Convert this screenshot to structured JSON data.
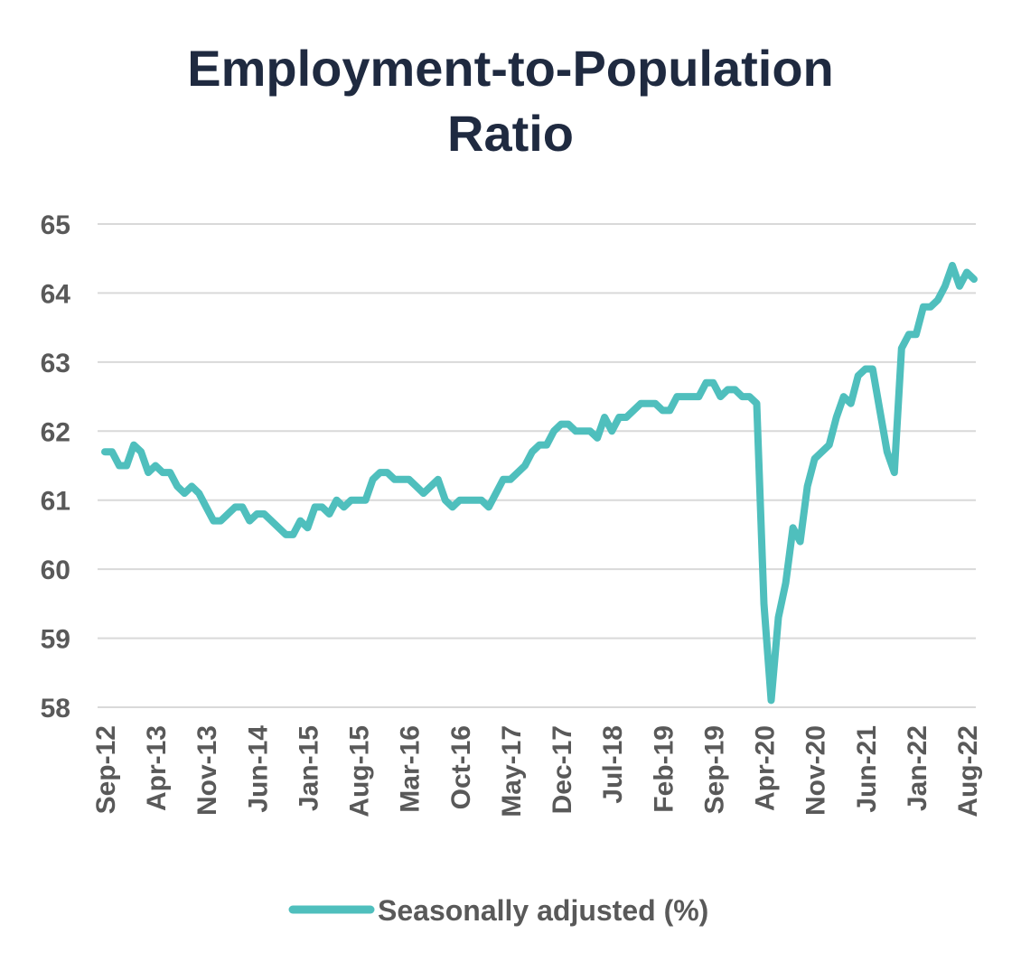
{
  "chart_data": {
    "type": "line",
    "title_line1": "Employment-to-Population",
    "title_line2": "Ratio",
    "xlabel": "",
    "ylabel": "",
    "ylim": [
      58,
      65
    ],
    "yticks": [
      58,
      59,
      60,
      61,
      62,
      63,
      64,
      65
    ],
    "grid": true,
    "legend_position": "bottom",
    "x_tick_labels": [
      "Sep-12",
      "Apr-13",
      "Nov-13",
      "Jun-14",
      "Jan-15",
      "Aug-15",
      "Mar-16",
      "Oct-16",
      "May-17",
      "Dec-17",
      "Jul-18",
      "Feb-19",
      "Sep-19",
      "Apr-20",
      "Nov-20",
      "Jun-21",
      "Jan-22",
      "Aug-22"
    ],
    "x_start": "Sep-12",
    "x_end": "Aug-22",
    "series": [
      {
        "name": "Seasonally adjusted (%)",
        "color": "#4fbfbd",
        "values": [
          61.7,
          61.7,
          61.5,
          61.5,
          61.8,
          61.7,
          61.4,
          61.5,
          61.4,
          61.4,
          61.2,
          61.1,
          61.2,
          61.1,
          60.9,
          60.7,
          60.7,
          60.8,
          60.9,
          60.9,
          60.7,
          60.8,
          60.8,
          60.7,
          60.6,
          60.5,
          60.5,
          60.7,
          60.6,
          60.9,
          60.9,
          60.8,
          61.0,
          60.9,
          61.0,
          61.0,
          61.0,
          61.3,
          61.4,
          61.4,
          61.3,
          61.3,
          61.3,
          61.2,
          61.1,
          61.2,
          61.3,
          61.0,
          60.9,
          61.0,
          61.0,
          61.0,
          61.0,
          60.9,
          61.1,
          61.3,
          61.3,
          61.4,
          61.5,
          61.7,
          61.8,
          61.8,
          62.0,
          62.1,
          62.1,
          62.0,
          62.0,
          62.0,
          61.9,
          62.2,
          62.0,
          62.2,
          62.2,
          62.3,
          62.4,
          62.4,
          62.4,
          62.3,
          62.3,
          62.5,
          62.5,
          62.5,
          62.5,
          62.7,
          62.7,
          62.5,
          62.6,
          62.6,
          62.5,
          62.5,
          62.4,
          59.5,
          58.1,
          59.3,
          59.8,
          60.6,
          60.4,
          61.2,
          61.6,
          61.7,
          61.8,
          62.2,
          62.5,
          62.4,
          62.8,
          62.9,
          62.9,
          62.3,
          61.7,
          61.4,
          63.2,
          63.4,
          63.4,
          63.8,
          63.8,
          63.9,
          64.1,
          64.4,
          64.1,
          64.3,
          64.2
        ]
      }
    ]
  }
}
